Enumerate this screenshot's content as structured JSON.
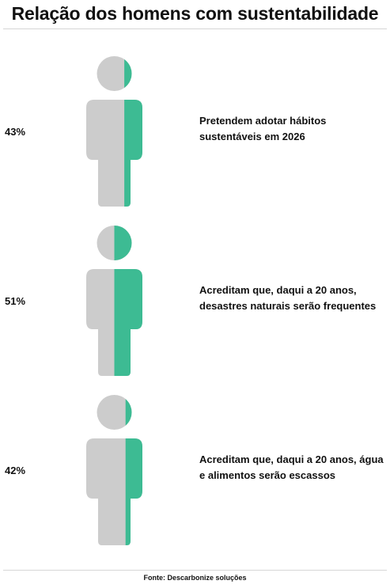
{
  "title": "Relação dos homens com sustentabilidade",
  "source": "Fonte: Descarbonize soluções",
  "colors": {
    "base": "#cccccc",
    "accent": "#3dbb93"
  },
  "chart_data": {
    "type": "pictogram",
    "title": "Relação dos homens com sustentabilidade",
    "unit": "%",
    "items": [
      {
        "value": 43,
        "label": "43%",
        "description": [
          "Pretendem adotar hábitos",
          "sustentáveis em 2026"
        ]
      },
      {
        "value": 51,
        "label": "51%",
        "description": [
          "Acreditam que, daqui a 20 anos,",
          "desastres naturais serão frequentes"
        ]
      },
      {
        "value": 42,
        "label": "42%",
        "description": [
          "Acreditam que, daqui a 20 anos, água",
          "e alimentos serão escassos"
        ]
      }
    ]
  }
}
